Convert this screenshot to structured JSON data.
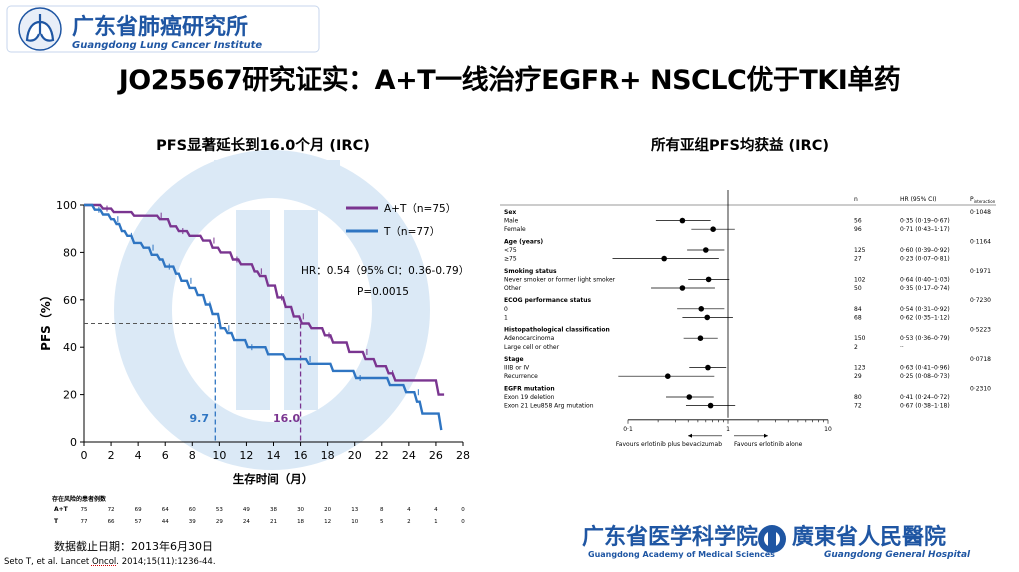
{
  "header": {
    "org_cn": "广东省肺癌研究所",
    "org_en": "Guangdong Lung Cancer Institute"
  },
  "title": "JO25567研究证实：A+T一线治疗EGFR+ NSCLC优于TKI单药",
  "km_subtitle": "PFS显著延长到16.0个月 (IRC)",
  "fp_subtitle": "所有亚组PFS均获益 (IRC)",
  "chart_data": [
    {
      "type": "line",
      "title": "",
      "xlabel": "生存时间（月）",
      "ylabel": "PFS（%）",
      "xlim": [
        0,
        28
      ],
      "ylim": [
        0,
        100
      ],
      "x_ticks": [
        "0",
        "2",
        "4",
        "6",
        "8",
        "10",
        "12",
        "14",
        "16",
        "18",
        "20",
        "22",
        "24",
        "26",
        "28"
      ],
      "y_ticks": [
        "0",
        "20",
        "40",
        "60",
        "80",
        "100"
      ],
      "legend": "top-right",
      "hr_text": "HR：0.54（95% CI：0.36-0.79）",
      "p_text": "P=0.0015",
      "median_line_y": 50,
      "series": [
        {
          "name": "A+T（n=75）",
          "color": "#7a3590",
          "median": 16.0,
          "median_label": "16.0",
          "points": [
            [
              0,
              100
            ],
            [
              1.2,
              100
            ],
            [
              1.4,
              98.5
            ],
            [
              2.0,
              98.5
            ],
            [
              2.2,
              97
            ],
            [
              3.5,
              97
            ],
            [
              3.7,
              95.5
            ],
            [
              5.4,
              95.5
            ],
            [
              5.6,
              94
            ],
            [
              6.2,
              94
            ],
            [
              6.4,
              91
            ],
            [
              6.8,
              91
            ],
            [
              7.0,
              89
            ],
            [
              7.6,
              89
            ],
            [
              7.8,
              87
            ],
            [
              8.6,
              87
            ],
            [
              8.8,
              85
            ],
            [
              9.3,
              85
            ],
            [
              9.5,
              82
            ],
            [
              9.9,
              82
            ],
            [
              10.1,
              80
            ],
            [
              10.8,
              80
            ],
            [
              11.0,
              77
            ],
            [
              11.4,
              77
            ],
            [
              11.6,
              75
            ],
            [
              12.4,
              75
            ],
            [
              12.6,
              72
            ],
            [
              12.8,
              72
            ],
            [
              13.0,
              70
            ],
            [
              13.4,
              70
            ],
            [
              13.6,
              66
            ],
            [
              14.1,
              66
            ],
            [
              14.3,
              61
            ],
            [
              14.7,
              61
            ],
            [
              14.9,
              57
            ],
            [
              15.3,
              57
            ],
            [
              15.5,
              53
            ],
            [
              15.9,
              53
            ],
            [
              16.1,
              50
            ],
            [
              16.6,
              50
            ],
            [
              16.8,
              48
            ],
            [
              17.6,
              48
            ],
            [
              17.8,
              45
            ],
            [
              18.2,
              45
            ],
            [
              18.4,
              42
            ],
            [
              19.4,
              42
            ],
            [
              19.6,
              38
            ],
            [
              20.6,
              38
            ],
            [
              20.8,
              35
            ],
            [
              21.4,
              35
            ],
            [
              21.6,
              32
            ],
            [
              22.3,
              32
            ],
            [
              22.5,
              29
            ],
            [
              22.8,
              29
            ],
            [
              23.0,
              26
            ],
            [
              26.0,
              26
            ],
            [
              26.2,
              20
            ],
            [
              26.6,
              20
            ]
          ]
        },
        {
          "name": "T（n=77）",
          "color": "#2f75c2",
          "median": 9.7,
          "median_label": "9.7",
          "points": [
            [
              0,
              100
            ],
            [
              0.6,
              100
            ],
            [
              0.8,
              98
            ],
            [
              1.2,
              98
            ],
            [
              1.4,
              96
            ],
            [
              1.8,
              96
            ],
            [
              2.0,
              94
            ],
            [
              2.2,
              94
            ],
            [
              2.4,
              92
            ],
            [
              2.6,
              92
            ],
            [
              2.8,
              89
            ],
            [
              3.0,
              89
            ],
            [
              3.2,
              87
            ],
            [
              3.5,
              87
            ],
            [
              3.7,
              84
            ],
            [
              4.2,
              84
            ],
            [
              4.4,
              82
            ],
            [
              4.8,
              82
            ],
            [
              5.0,
              79
            ],
            [
              5.4,
              79
            ],
            [
              5.6,
              77
            ],
            [
              5.8,
              77
            ],
            [
              6.0,
              74
            ],
            [
              6.6,
              74
            ],
            [
              6.8,
              71
            ],
            [
              7.0,
              71
            ],
            [
              7.2,
              68
            ],
            [
              7.6,
              68
            ],
            [
              7.8,
              65
            ],
            [
              8.2,
              65
            ],
            [
              8.4,
              62
            ],
            [
              8.8,
              62
            ],
            [
              9.0,
              58
            ],
            [
              9.3,
              58
            ],
            [
              9.5,
              54
            ],
            [
              9.9,
              54
            ],
            [
              10.1,
              48
            ],
            [
              10.4,
              48
            ],
            [
              10.6,
              46
            ],
            [
              10.9,
              46
            ],
            [
              11.1,
              43
            ],
            [
              11.9,
              43
            ],
            [
              12.1,
              40
            ],
            [
              13.4,
              40
            ],
            [
              13.6,
              37
            ],
            [
              14.7,
              37
            ],
            [
              14.9,
              35
            ],
            [
              16.4,
              35
            ],
            [
              16.6,
              33
            ],
            [
              18.2,
              33
            ],
            [
              18.4,
              30
            ],
            [
              19.9,
              30
            ],
            [
              20.1,
              27
            ],
            [
              22.4,
              27
            ],
            [
              22.6,
              24
            ],
            [
              23.6,
              24
            ],
            [
              23.8,
              21
            ],
            [
              24.4,
              21
            ],
            [
              24.6,
              17
            ],
            [
              24.8,
              17
            ],
            [
              25.0,
              12
            ],
            [
              26.2,
              12
            ],
            [
              26.4,
              5
            ]
          ]
        }
      ]
    },
    {
      "type": "forest",
      "title": "",
      "xlabel": "",
      "x_scale": "log",
      "xlim": [
        0.1,
        10
      ],
      "x_ticks": [
        "0·1",
        "1",
        "10"
      ],
      "col_headers": {
        "n": "n",
        "hr": "HR (95% CI)",
        "p": "P"
      },
      "p_sub": "interaction",
      "favours_left": "Favours erlotinib plus bevacizumab",
      "favours_right": "Favours erlotinib alone",
      "groups": [
        {
          "label": "Sex",
          "p": "0·1048",
          "rows": [
            {
              "label": "Male",
              "n": "56",
              "hr": 0.35,
              "lo": 0.19,
              "hi": 0.67,
              "text": "0·35 (0·19–0·67)"
            },
            {
              "label": "Female",
              "n": "96",
              "hr": 0.71,
              "lo": 0.43,
              "hi": 1.17,
              "text": "0·71 (0·43–1·17)"
            }
          ]
        },
        {
          "label": "Age (years)",
          "p": "0·1164",
          "rows": [
            {
              "label": "<75",
              "n": "125",
              "hr": 0.6,
              "lo": 0.39,
              "hi": 0.92,
              "text": "0·60 (0·39–0·92)"
            },
            {
              "label": "≥75",
              "n": "27",
              "hr": 0.23,
              "lo": 0.07,
              "hi": 0.81,
              "text": "0·23 (0·07–0·81)"
            }
          ]
        },
        {
          "label": "Smoking status",
          "p": "0·1971",
          "rows": [
            {
              "label": "Never smoker or former light smoker",
              "n": "102",
              "hr": 0.64,
              "lo": 0.4,
              "hi": 1.03,
              "text": "0·64 (0·40–1·03)"
            },
            {
              "label": "Other",
              "n": "50",
              "hr": 0.35,
              "lo": 0.17,
              "hi": 0.74,
              "text": "0·35 (0·17–0·74)"
            }
          ]
        },
        {
          "label": "ECOG performance status",
          "p": "0·7230",
          "rows": [
            {
              "label": "0",
              "n": "84",
              "hr": 0.54,
              "lo": 0.31,
              "hi": 0.92,
              "text": "0·54 (0·31–0·92)"
            },
            {
              "label": "1",
              "n": "68",
              "hr": 0.62,
              "lo": 0.35,
              "hi": 1.12,
              "text": "0·62 (0·35–1·12)"
            }
          ]
        },
        {
          "label": "Histopathological classification",
          "p": "0·5223",
          "rows": [
            {
              "label": "Adenocarcinoma",
              "n": "150",
              "hr": 0.53,
              "lo": 0.36,
              "hi": 0.79,
              "text": "0·53 (0·36–0·79)"
            },
            {
              "label": "Large cell or other",
              "n": "2",
              "hr": null,
              "lo": null,
              "hi": null,
              "text": "··"
            }
          ]
        },
        {
          "label": "Stage",
          "p": "0·0718",
          "rows": [
            {
              "label": "IIIB or IV",
              "n": "123",
              "hr": 0.63,
              "lo": 0.41,
              "hi": 0.96,
              "text": "0·63 (0·41–0·96)"
            },
            {
              "label": "Recurrence",
              "n": "29",
              "hr": 0.25,
              "lo": 0.08,
              "hi": 0.73,
              "text": "0·25 (0·08–0·73)"
            }
          ]
        },
        {
          "label": "EGFR mutation",
          "p": "0·2310",
          "rows": [
            {
              "label": "Exon 19 deletion",
              "n": "80",
              "hr": 0.41,
              "lo": 0.24,
              "hi": 0.72,
              "text": "0·41 (0·24–0·72)"
            },
            {
              "label": "Exon 21 Leu858 Arg mutation",
              "n": "72",
              "hr": 0.67,
              "lo": 0.38,
              "hi": 1.18,
              "text": "0·67 (0·38–1·18)"
            }
          ]
        }
      ]
    }
  ],
  "risk_table": {
    "label": "存在风险的患者例数",
    "rows": [
      {
        "name": "A+T",
        "values": [
          "75",
          "72",
          "69",
          "64",
          "60",
          "53",
          "49",
          "38",
          "30",
          "20",
          "13",
          "8",
          "4",
          "4",
          "0"
        ]
      },
      {
        "name": "T",
        "values": [
          "77",
          "66",
          "57",
          "44",
          "39",
          "29",
          "24",
          "21",
          "18",
          "12",
          "10",
          "5",
          "2",
          "1",
          "0"
        ]
      }
    ]
  },
  "cutoff": "数据截止日期：2013年6月30日",
  "citation": {
    "prefix": "Seto T, et al. Lancet ",
    "underlined": "Oncol",
    "suffix": ". 2014;15(11):1236-44."
  },
  "footer": {
    "academy_cn": "广东省医学科学院",
    "academy_en": "Guangdong Academy of Medical Sciences",
    "hospital_cn": "廣東省人民醫院",
    "hospital_en": "Guangdong General Hospital"
  },
  "colors": {
    "brand_blue": "#1f56a3",
    "watermark": "#dbe9f6",
    "at_purple": "#7a3590",
    "t_blue": "#2f75c2"
  }
}
